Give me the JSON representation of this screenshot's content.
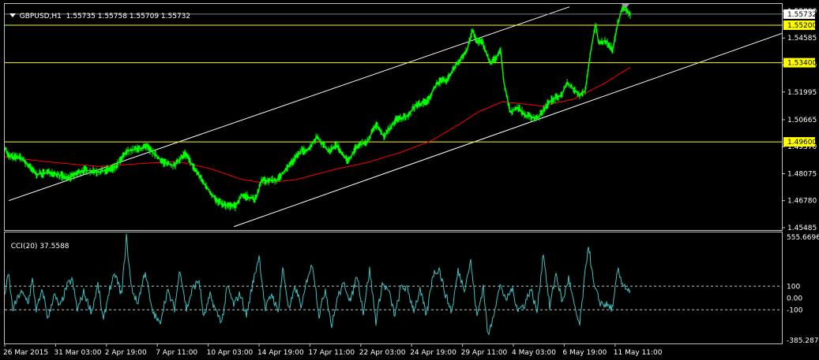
{
  "header": {
    "symbol_timeframe": "GBPUSD,H1",
    "open": "1.55735",
    "high": "1.55758",
    "low": "1.55709",
    "close": "1.55732"
  },
  "cci_header": {
    "label": "CCI(20)",
    "value": "37.5588"
  },
  "colors": {
    "background": "#000000",
    "price": "#00ff00",
    "ma": "#ff0000",
    "cci": "#40c0c0",
    "hline": "#ffff00",
    "channel": "#ffffff",
    "frame": "#c0c0c0"
  },
  "chart_data": [
    {
      "type": "line",
      "symbol": "GBPUSD",
      "timeframe": "H1",
      "price_axis_ticks": [
        1.45485,
        1.4678,
        1.48075,
        1.4937,
        1.50665,
        1.51995,
        1.5329,
        1.54585,
        1.5588
      ],
      "price_axis_labels": [
        "1.45485",
        "1.46780",
        "1.48075",
        "1.49370",
        "1.50665",
        "1.51995",
        "1.53290",
        "1.54585",
        "1.55880"
      ],
      "ylim": [
        1.4537,
        1.5622
      ],
      "x_tick_labels": [
        "26 Mar 2015",
        "31 Mar 03:00",
        "2 Apr 19:00",
        "7 Apr 11:00",
        "10 Apr 03:00",
        "14 Apr 19:00",
        "17 Apr 11:00",
        "22 Apr 03:00",
        "24 Apr 19:00",
        "29 Apr 11:00",
        "4 May 03:00",
        "6 May 19:00",
        "11 May 11:00"
      ],
      "series": [
        {
          "name": "price",
          "points": [
            [
              0,
              1.4935
            ],
            [
              5,
              1.489
            ],
            [
              20,
              1.4885
            ],
            [
              40,
              1.4805
            ],
            [
              60,
              1.4815
            ],
            [
              80,
              1.4785
            ],
            [
              100,
              1.4825
            ],
            [
              120,
              1.4815
            ],
            [
              140,
              1.4838
            ],
            [
              155,
              1.4915
            ],
            [
              180,
              1.4935
            ],
            [
              200,
              1.4865
            ],
            [
              215,
              1.4845
            ],
            [
              228,
              1.4905
            ],
            [
              240,
              1.4835
            ],
            [
              255,
              1.4745
            ],
            [
              270,
              1.467
            ],
            [
              280,
              1.4655
            ],
            [
              292,
              1.465
            ],
            [
              300,
              1.4705
            ],
            [
              318,
              1.4685
            ],
            [
              325,
              1.4775
            ],
            [
              345,
              1.4775
            ],
            [
              355,
              1.4825
            ],
            [
              375,
              1.4915
            ],
            [
              385,
              1.4925
            ],
            [
              395,
              1.4985
            ],
            [
              410,
              1.4915
            ],
            [
              420,
              1.4945
            ],
            [
              435,
              1.4865
            ],
            [
              445,
              1.4935
            ],
            [
              460,
              1.4965
            ],
            [
              470,
              1.5045
            ],
            [
              480,
              1.4985
            ],
            [
              495,
              1.5065
            ],
            [
              510,
              1.5085
            ],
            [
              520,
              1.5135
            ],
            [
              535,
              1.5155
            ],
            [
              548,
              1.5245
            ],
            [
              560,
              1.5255
            ],
            [
              572,
              1.5335
            ],
            [
              585,
              1.5395
            ],
            [
              592,
              1.5495
            ],
            [
              598,
              1.5445
            ],
            [
              605,
              1.5435
            ],
            [
              615,
              1.5335
            ],
            [
              628,
              1.5395
            ],
            [
              632,
              1.5245
            ],
            [
              640,
              1.5105
            ],
            [
              650,
              1.5125
            ],
            [
              660,
              1.5085
            ],
            [
              675,
              1.5075
            ],
            [
              690,
              1.5155
            ],
            [
              705,
              1.5185
            ],
            [
              712,
              1.5245
            ],
            [
              728,
              1.5185
            ],
            [
              735,
              1.5205
            ],
            [
              742,
              1.5395
            ],
            [
              748,
              1.5525
            ],
            [
              752,
              1.5435
            ],
            [
              760,
              1.5445
            ],
            [
              770,
              1.5405
            ],
            [
              776,
              1.5525
            ],
            [
              782,
              1.5605
            ],
            [
              792,
              1.5573
            ]
          ]
        },
        {
          "name": "ma",
          "points": [
            [
              0,
              1.4888
            ],
            [
              60,
              1.4862
            ],
            [
              120,
              1.4842
            ],
            [
              180,
              1.4858
            ],
            [
              220,
              1.4865
            ],
            [
              260,
              1.4832
            ],
            [
              300,
              1.478
            ],
            [
              330,
              1.4762
            ],
            [
              370,
              1.478
            ],
            [
              420,
              1.483
            ],
            [
              460,
              1.4862
            ],
            [
              500,
              1.4908
            ],
            [
              540,
              1.4965
            ],
            [
              580,
              1.5055
            ],
            [
              600,
              1.5105
            ],
            [
              630,
              1.5152
            ],
            [
              650,
              1.5145
            ],
            [
              680,
              1.5132
            ],
            [
              720,
              1.5165
            ],
            [
              760,
              1.5242
            ],
            [
              792,
              1.5318
            ]
          ]
        }
      ],
      "horizontal_levels": [
        1.552,
        1.534,
        1.496
      ],
      "horizontal_level_labels": [
        "1.55200",
        "1.53400",
        "1.49600"
      ],
      "current_price": 1.55732,
      "current_price_label": "1.55732",
      "channel_lines": [
        [
          [
            5,
            1.4678
          ],
          [
            715,
            1.5608
          ]
        ],
        [
          [
            290,
            1.4553
          ],
          [
            1000,
            1.5502
          ]
        ]
      ]
    },
    {
      "type": "line",
      "name": "CCI(20)",
      "value": 37.5588,
      "axis_labels": [
        "555.6696",
        "100",
        "0.00",
        "-100",
        "-385.2873"
      ],
      "axis_values": [
        555.6696,
        100,
        0,
        -100,
        -385.2873
      ],
      "ylim": [
        -385.2873,
        555.6696
      ],
      "levels": [
        100,
        -100
      ],
      "points": [
        [
          0,
          40
        ],
        [
          5,
          200
        ],
        [
          10,
          -100
        ],
        [
          20,
          50
        ],
        [
          30,
          -30
        ],
        [
          35,
          150
        ],
        [
          40,
          -100
        ],
        [
          48,
          60
        ],
        [
          55,
          -180
        ],
        [
          62,
          30
        ],
        [
          70,
          -80
        ],
        [
          78,
          90
        ],
        [
          85,
          160
        ],
        [
          92,
          -100
        ],
        [
          100,
          50
        ],
        [
          110,
          -120
        ],
        [
          118,
          110
        ],
        [
          125,
          -200
        ],
        [
          132,
          60
        ],
        [
          140,
          200
        ],
        [
          148,
          20
        ],
        [
          154,
          520
        ],
        [
          160,
          100
        ],
        [
          168,
          -50
        ],
        [
          178,
          230
        ],
        [
          186,
          -100
        ],
        [
          196,
          -220
        ],
        [
          206,
          60
        ],
        [
          215,
          -90
        ],
        [
          222,
          250
        ],
        [
          230,
          -100
        ],
        [
          238,
          80
        ],
        [
          246,
          150
        ],
        [
          252,
          -170
        ],
        [
          260,
          20
        ],
        [
          268,
          -120
        ],
        [
          275,
          -200
        ],
        [
          282,
          100
        ],
        [
          290,
          -60
        ],
        [
          298,
          40
        ],
        [
          306,
          -150
        ],
        [
          314,
          120
        ],
        [
          322,
          360
        ],
        [
          330,
          -100
        ],
        [
          338,
          40
        ],
        [
          346,
          -120
        ],
        [
          352,
          250
        ],
        [
          360,
          -100
        ],
        [
          368,
          90
        ],
        [
          376,
          -80
        ],
        [
          384,
          200
        ],
        [
          390,
          280
        ],
        [
          398,
          -150
        ],
        [
          406,
          80
        ],
        [
          414,
          -240
        ],
        [
          422,
          20
        ],
        [
          430,
          120
        ],
        [
          438,
          -30
        ],
        [
          446,
          200
        ],
        [
          454,
          -120
        ],
        [
          462,
          240
        ],
        [
          470,
          -200
        ],
        [
          478,
          120
        ],
        [
          486,
          60
        ],
        [
          494,
          -150
        ],
        [
          502,
          100
        ],
        [
          510,
          70
        ],
        [
          518,
          -100
        ],
        [
          526,
          60
        ],
        [
          534,
          -150
        ],
        [
          542,
          200
        ],
        [
          550,
          250
        ],
        [
          558,
          30
        ],
        [
          566,
          -120
        ],
        [
          574,
          230
        ],
        [
          582,
          80
        ],
        [
          590,
          310
        ],
        [
          598,
          -160
        ],
        [
          606,
          100
        ],
        [
          612,
          -330
        ],
        [
          620,
          -100
        ],
        [
          628,
          120
        ],
        [
          634,
          -30
        ],
        [
          642,
          80
        ],
        [
          650,
          -100
        ],
        [
          658,
          -60
        ],
        [
          666,
          80
        ],
        [
          674,
          -120
        ],
        [
          682,
          390
        ],
        [
          690,
          -80
        ],
        [
          698,
          210
        ],
        [
          706,
          -40
        ],
        [
          714,
          170
        ],
        [
          722,
          -100
        ],
        [
          728,
          -230
        ],
        [
          734,
          150
        ],
        [
          739,
          460
        ],
        [
          746,
          100
        ],
        [
          754,
          -40
        ],
        [
          762,
          -60
        ],
        [
          770,
          -90
        ],
        [
          776,
          240
        ],
        [
          782,
          130
        ],
        [
          792,
          37.5588
        ]
      ]
    }
  ]
}
